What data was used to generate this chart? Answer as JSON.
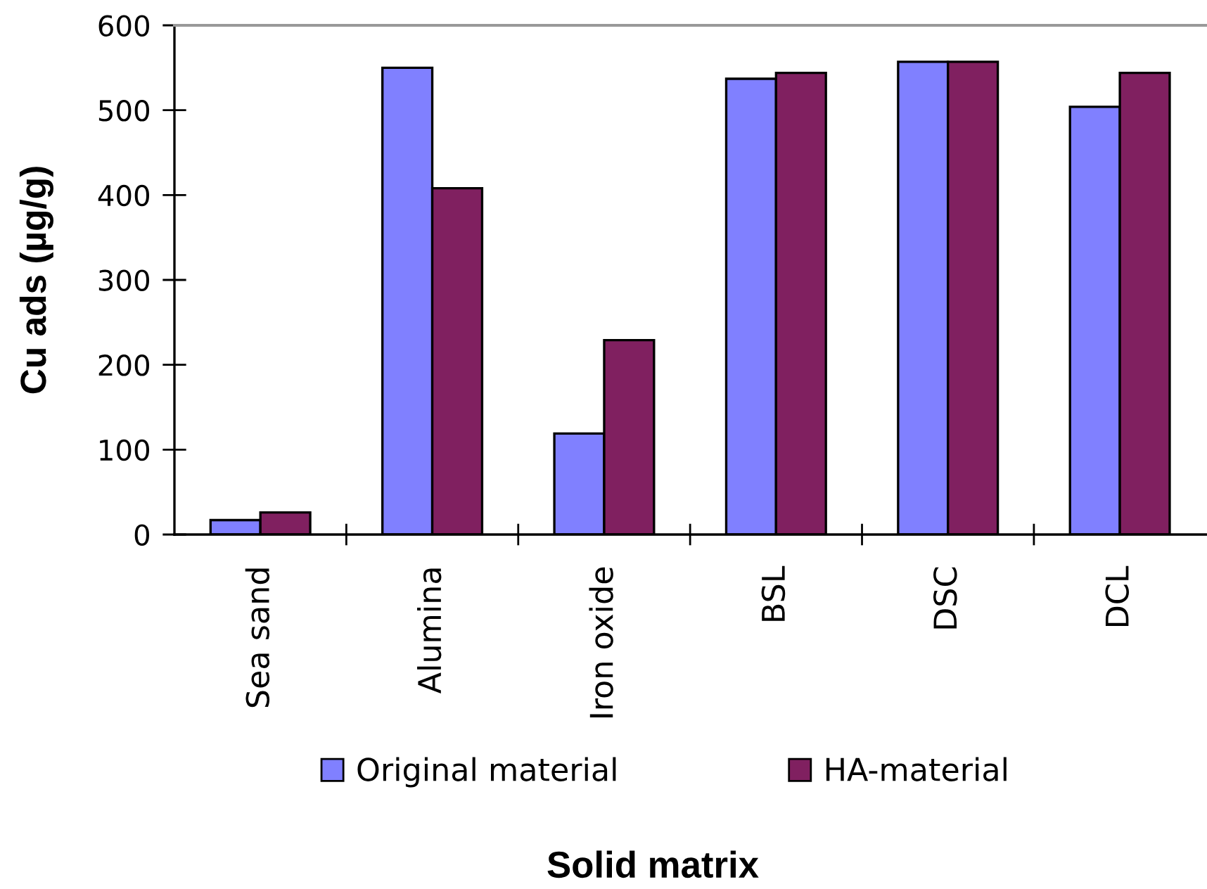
{
  "chart_data": {
    "type": "bar",
    "xlabel": "Solid matrix",
    "ylabel": "Cu ads (µg/g)",
    "categories": [
      "Sea sand",
      "Alumina",
      "Iron oxide",
      "BSL",
      "DSC",
      "DCL"
    ],
    "series": [
      {
        "name": "Original material",
        "color": "#8080ff",
        "values": [
          17,
          550,
          119,
          537,
          557,
          504
        ]
      },
      {
        "name": "HA-material",
        "color": "#802060",
        "values": [
          26,
          408,
          229,
          544,
          557,
          544
        ]
      }
    ],
    "ylim": [
      0,
      600
    ],
    "yticks": [
      0,
      100,
      200,
      300,
      400,
      500,
      600
    ],
    "legend": "bottom",
    "grid": false
  }
}
